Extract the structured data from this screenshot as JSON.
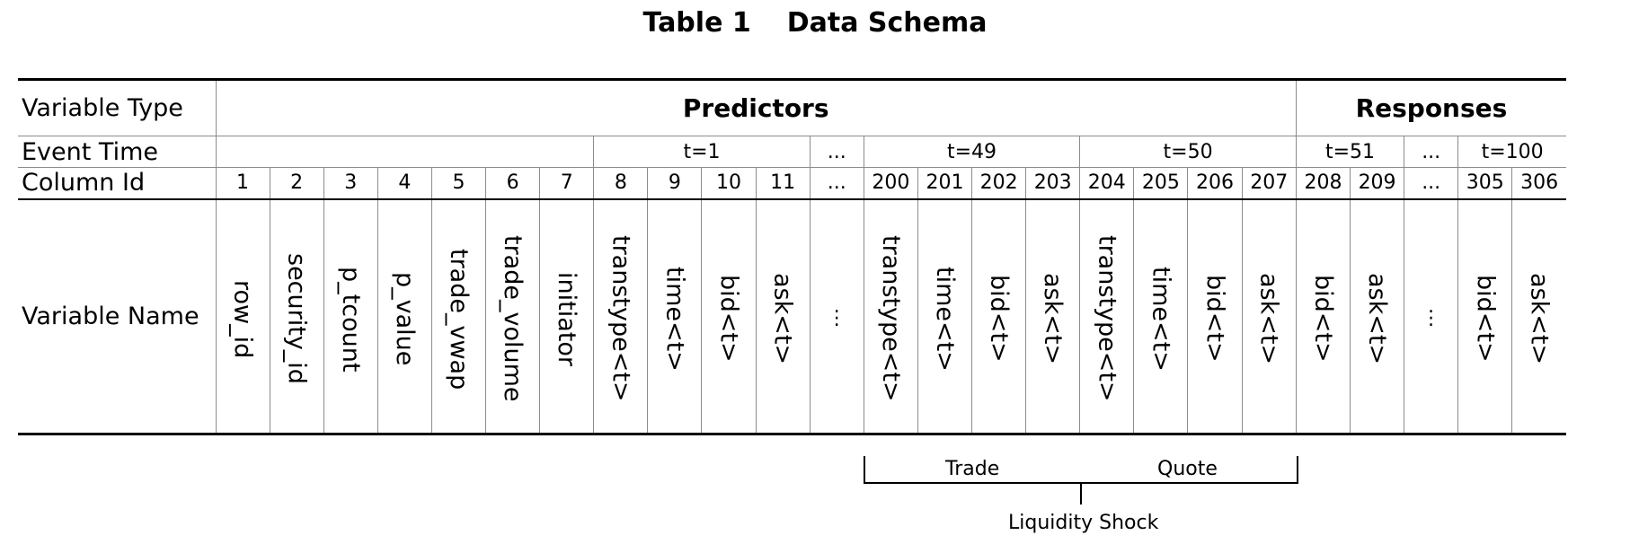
{
  "title": {
    "table_no": "Table 1",
    "caption": "Data Schema"
  },
  "row_labels": {
    "variable_type": "Variable Type",
    "event_time": "Event Time",
    "column_id": "Column Id",
    "variable_name": "Variable Name"
  },
  "groups": {
    "predictors": "Predictors",
    "responses": "Responses"
  },
  "event_times": [
    "t=1",
    "...",
    "t=49",
    "t=50",
    "t=51",
    "...",
    "t=100"
  ],
  "column_ids": [
    "1",
    "2",
    "3",
    "4",
    "5",
    "6",
    "7",
    "8",
    "9",
    "10",
    "11",
    "...",
    "200",
    "201",
    "202",
    "203",
    "204",
    "205",
    "206",
    "207",
    "208",
    "209",
    "...",
    "305",
    "306"
  ],
  "variable_names": [
    "row_id",
    "security_id",
    "p_tcount",
    "p_value",
    "trade_vwap",
    "trade_volume",
    "initiator",
    "transtype<t>",
    "time<t>",
    "bid<t>",
    "ask<t>",
    "...",
    "transtype<t>",
    "time<t>",
    "bid<t>",
    "ask<t>",
    "transtype<t>",
    "time<t>",
    "bid<t>",
    "ask<t>",
    "bid<t>",
    "ask<t>",
    "...",
    "bid<t>",
    "ask<t>"
  ],
  "annotations": {
    "trade": "Trade",
    "quote": "Quote",
    "liquidity_shock": "Liquidity Shock"
  }
}
